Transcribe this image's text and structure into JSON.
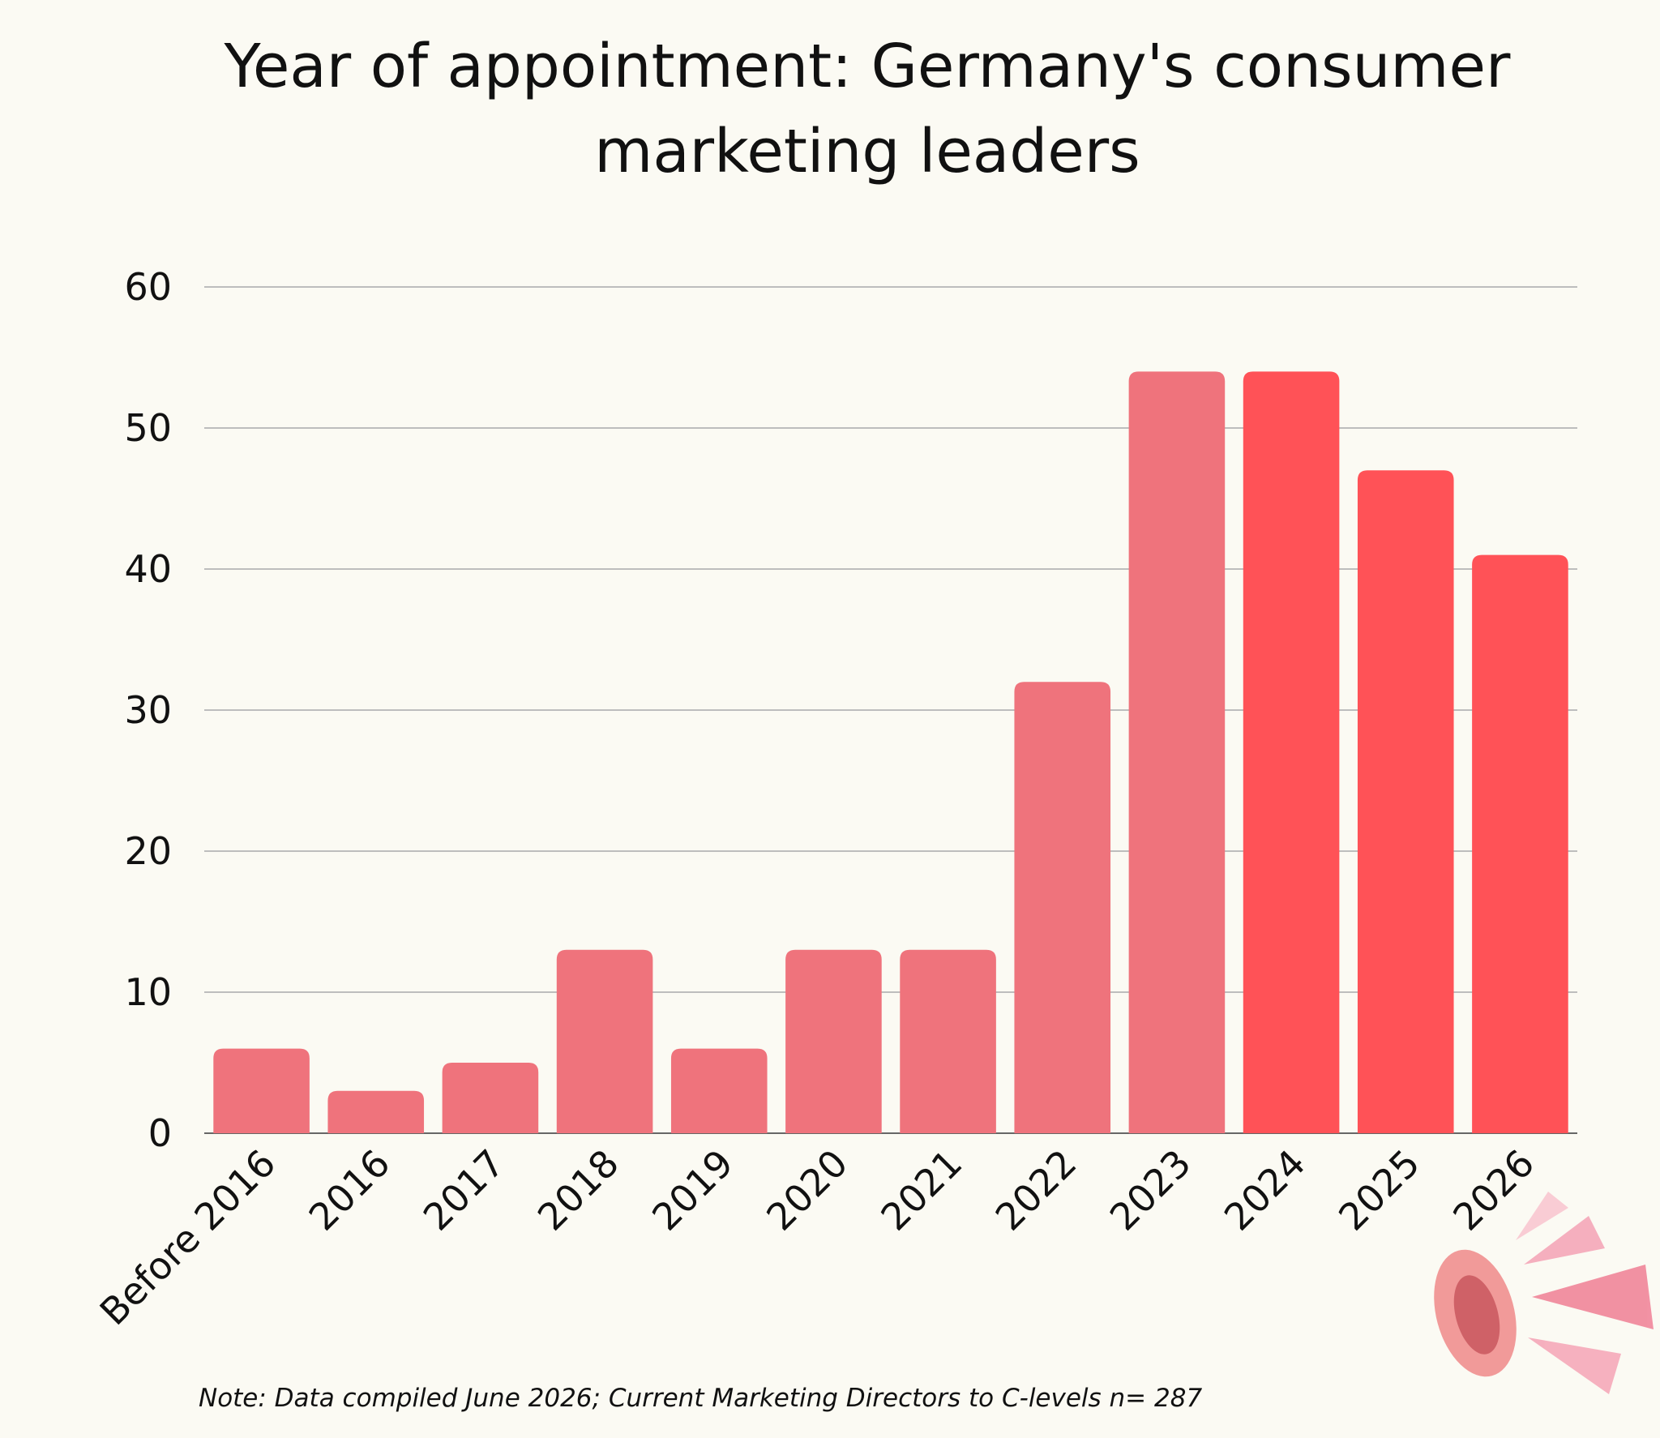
{
  "chart_data": {
    "type": "bar",
    "title": "Year of appointment: Germany's consumer marketing leaders",
    "categories": [
      "Before 2016",
      "2016",
      "2017",
      "2018",
      "2019",
      "2020",
      "2021",
      "2022",
      "2023",
      "2024",
      "2025",
      "2026"
    ],
    "values": [
      6,
      3,
      5,
      13,
      6,
      13,
      13,
      32,
      54,
      54,
      47,
      41
    ],
    "colors": [
      "#ef737c",
      "#ef737c",
      "#ef737c",
      "#ef737c",
      "#ef737c",
      "#ef737c",
      "#ef737c",
      "#ef737c",
      "#ef737c",
      "#ff5257",
      "#ff5257",
      "#ff5257"
    ],
    "ylim": [
      0,
      60
    ],
    "yticks": [
      0,
      10,
      20,
      30,
      40,
      50,
      60
    ],
    "grid": true,
    "note": "Note: Data compiled June 2026; Current Marketing Directors to C-levels n= 287"
  }
}
